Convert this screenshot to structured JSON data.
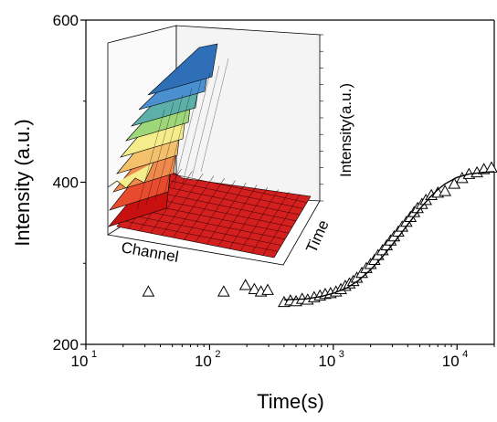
{
  "chart_data": {
    "type": "scatter",
    "xlabel": "Time(s)",
    "ylabel": "Intensity (a.u.)",
    "x_scale": "log",
    "xlim": [
      10,
      20000
    ],
    "ylim": [
      200,
      600
    ],
    "grid": false,
    "x_ticks": [
      {
        "value": 10,
        "base": "10",
        "exp": "1"
      },
      {
        "value": 100,
        "base": "10",
        "exp": "2"
      },
      {
        "value": 1000,
        "base": "10",
        "exp": "3"
      },
      {
        "value": 10000,
        "base": "10",
        "exp": "4"
      }
    ],
    "y_ticks": [
      {
        "value": 200,
        "label": "200"
      },
      {
        "value": 400,
        "label": "400"
      },
      {
        "value": 600,
        "label": "600"
      }
    ],
    "series": [
      {
        "kind": "scatter",
        "marker": "open-triangle",
        "points": [
          [
            32,
            265
          ],
          [
            130,
            265
          ],
          [
            195,
            273
          ],
          [
            230,
            268
          ],
          [
            260,
            265
          ],
          [
            295,
            267
          ],
          [
            400,
            252
          ],
          [
            450,
            254
          ],
          [
            500,
            253
          ],
          [
            560,
            256
          ],
          [
            620,
            255
          ],
          [
            700,
            258
          ],
          [
            780,
            260
          ],
          [
            860,
            262
          ],
          [
            950,
            263
          ],
          [
            1050,
            265
          ],
          [
            1150,
            268
          ],
          [
            1250,
            272
          ],
          [
            1350,
            275
          ],
          [
            1450,
            278
          ],
          [
            1550,
            282
          ],
          [
            1700,
            288
          ],
          [
            1850,
            294
          ],
          [
            2000,
            299
          ],
          [
            2150,
            304
          ],
          [
            2300,
            310
          ],
          [
            2500,
            316
          ],
          [
            2700,
            322
          ],
          [
            2900,
            328
          ],
          [
            3100,
            333
          ],
          [
            3350,
            339
          ],
          [
            3600,
            345
          ],
          [
            3900,
            351
          ],
          [
            4200,
            357
          ],
          [
            4500,
            363
          ],
          [
            4800,
            368
          ],
          [
            5200,
            373
          ],
          [
            5600,
            378
          ],
          [
            6200,
            384
          ],
          [
            7000,
            387
          ],
          [
            8000,
            389
          ],
          [
            9500,
            398
          ],
          [
            11000,
            405
          ],
          [
            12500,
            410
          ],
          [
            14500,
            412
          ],
          [
            16500,
            416
          ],
          [
            19000,
            418
          ]
        ]
      },
      {
        "kind": "line",
        "style": "fit",
        "points": [
          [
            400,
            255
          ],
          [
            600,
            256
          ],
          [
            800,
            259
          ],
          [
            1000,
            263
          ],
          [
            1300,
            270
          ],
          [
            1600,
            279
          ],
          [
            2000,
            292
          ],
          [
            2500,
            308
          ],
          [
            3000,
            323
          ],
          [
            3500,
            336
          ],
          [
            4000,
            348
          ],
          [
            5000,
            367
          ],
          [
            6000,
            381
          ],
          [
            7000,
            391
          ],
          [
            8000,
            398
          ],
          [
            10000,
            406
          ],
          [
            12500,
            410
          ],
          [
            16000,
            412
          ],
          [
            20000,
            413
          ]
        ]
      }
    ],
    "inset": {
      "type": "3d-surface",
      "labels": {
        "channel": "Channel",
        "time": "Time",
        "intensity": "Intensity(a.u.)"
      },
      "band_colors": [
        "#c81010",
        "#e84a2e",
        "#f08a4c",
        "#f3c06c",
        "#f5ec8c",
        "#9ed67a",
        "#5cb0a8",
        "#4a8fd0",
        "#2e6fb8"
      ]
    }
  }
}
